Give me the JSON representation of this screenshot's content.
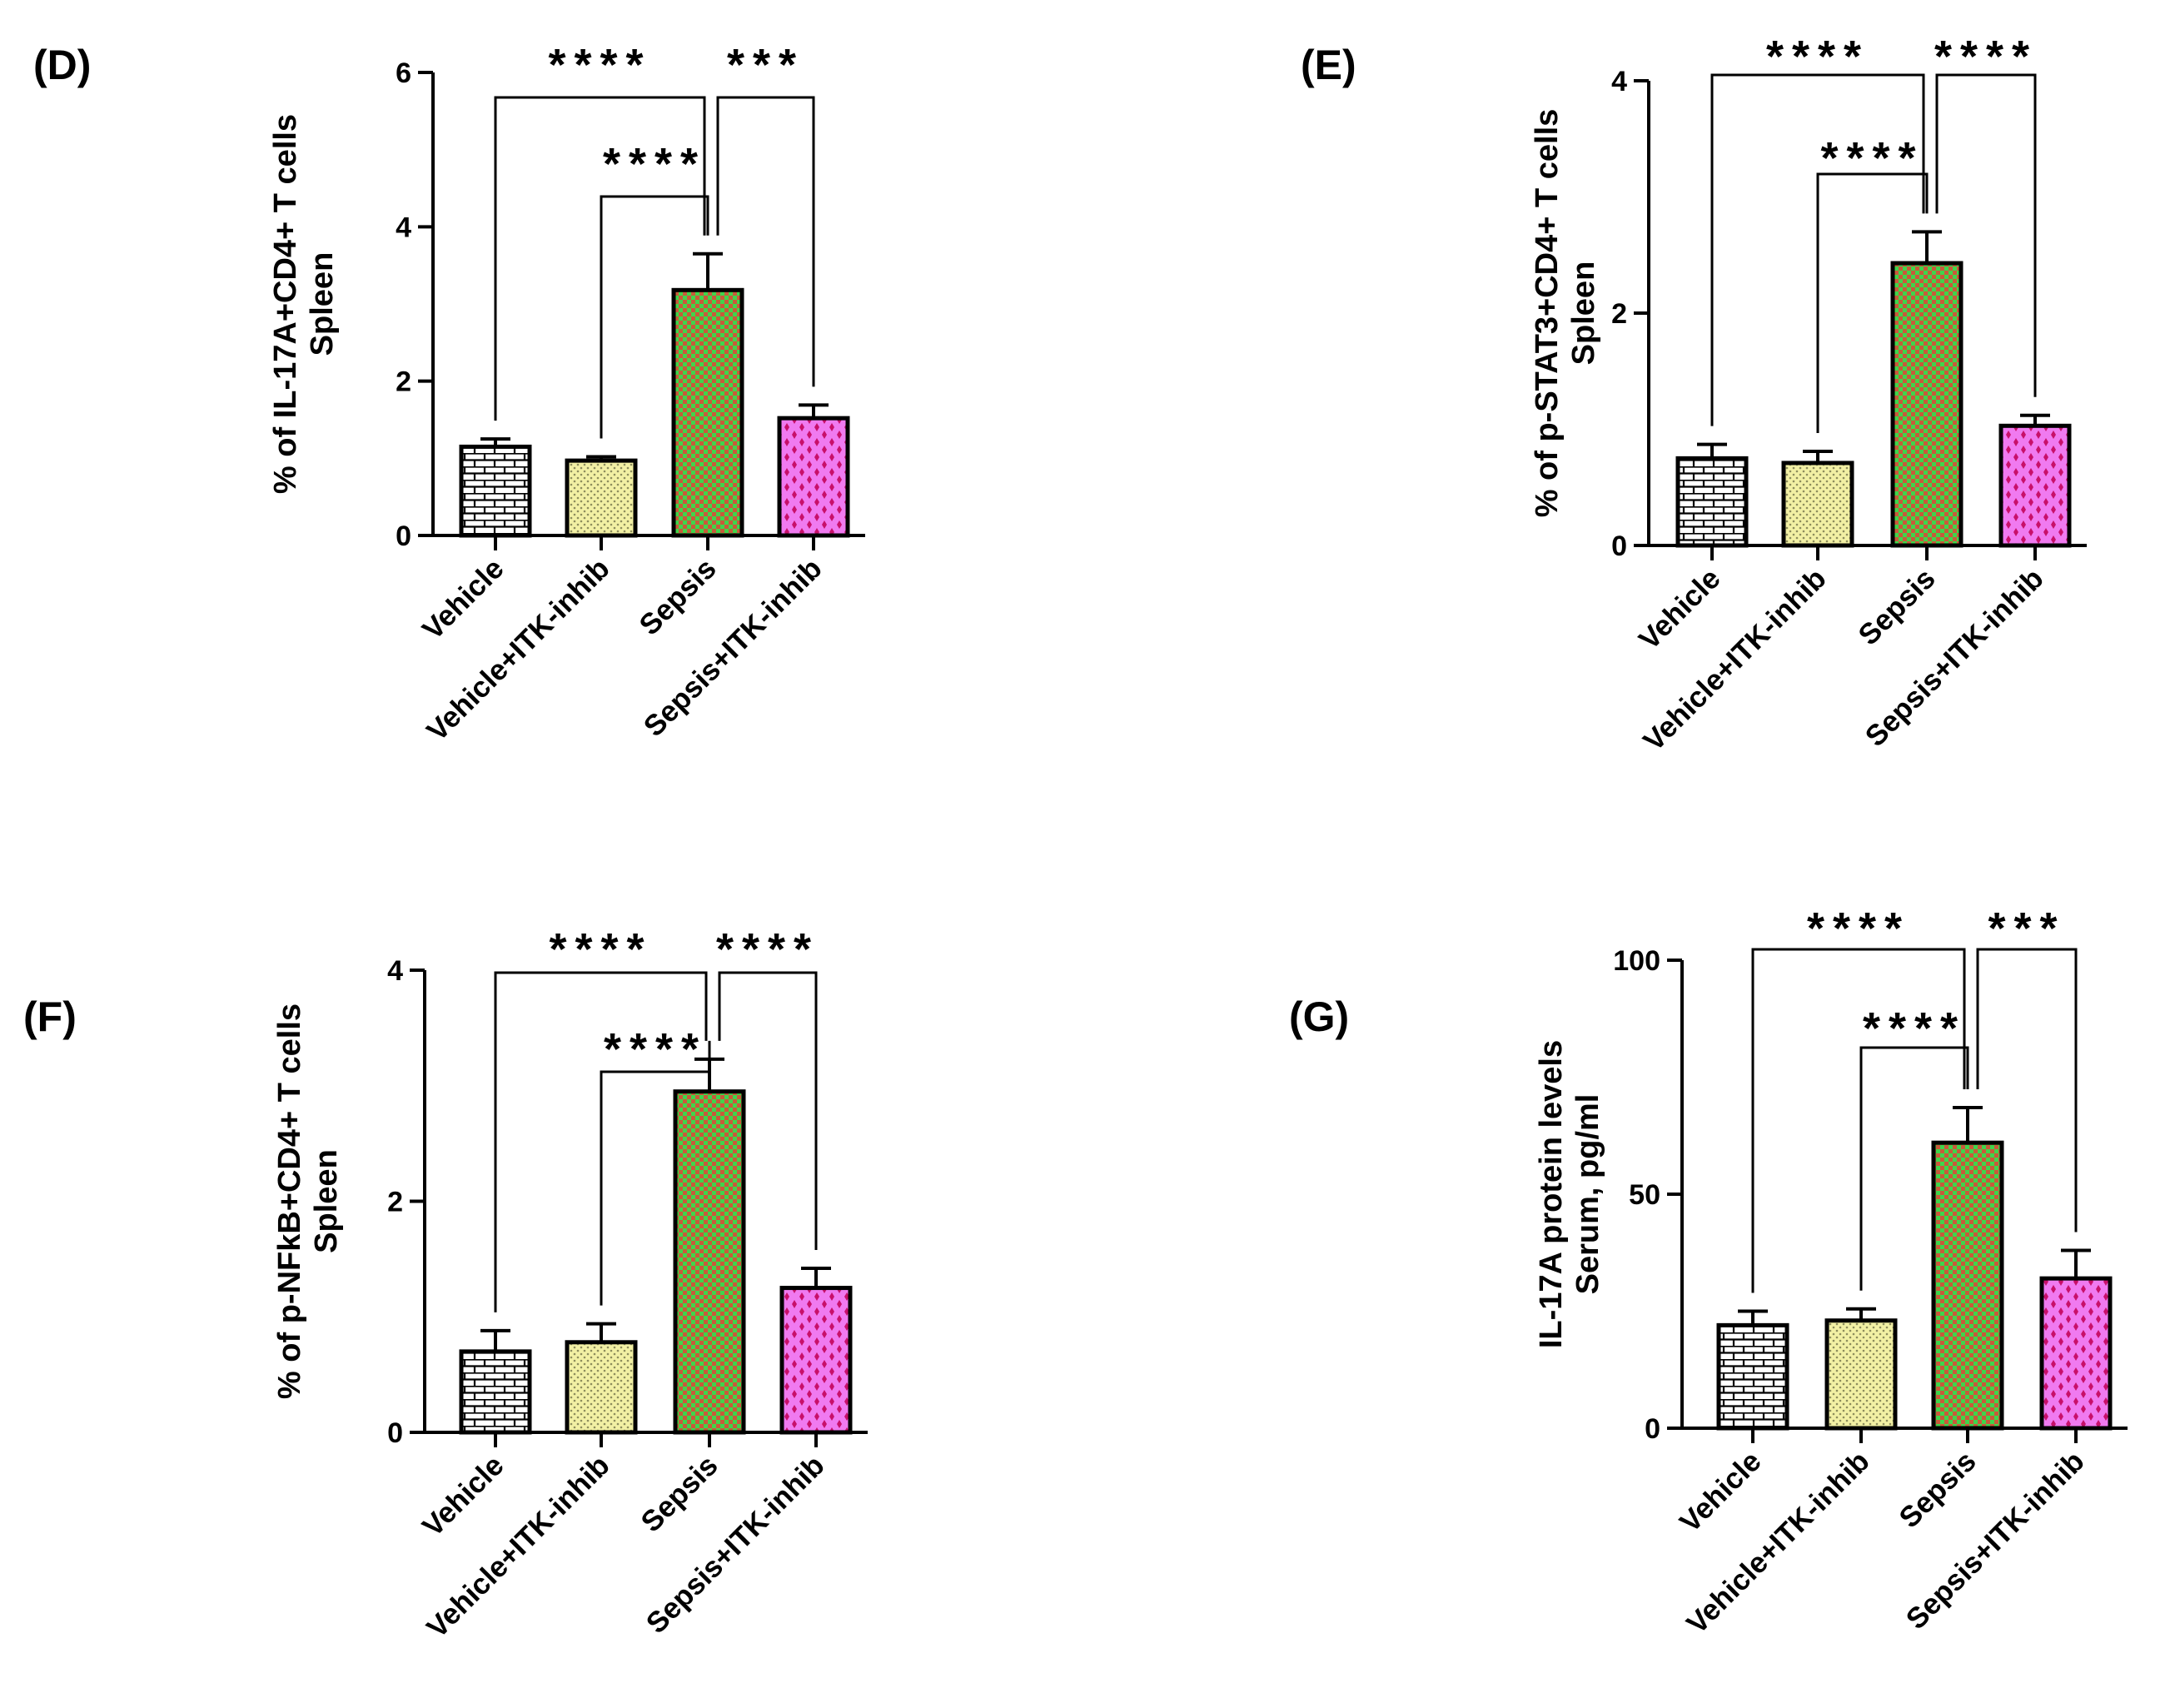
{
  "chart_data": [
    {
      "type": "bar",
      "panel": "(D)",
      "categories": [
        "Vehicle",
        "Vehicle+ITK-inhib",
        "Sepsis",
        "Sepsis+ITK-inhib"
      ],
      "values": [
        1.15,
        0.97,
        3.18,
        1.52
      ],
      "errors": [
        0.1,
        0.05,
        0.47,
        0.17
      ],
      "ylabel": [
        "% of IL-17A+CD4+ T cells",
        "Spleen"
      ],
      "ylim": [
        0,
        6
      ],
      "yticks": [
        "0",
        "2",
        "4",
        "6"
      ],
      "grid": false,
      "significance": [
        {
          "from": "Vehicle",
          "to": "Sepsis",
          "stars": "****"
        },
        {
          "from": "Vehicle+ITK-inhib",
          "to": "Sepsis",
          "stars": "****"
        },
        {
          "from": "Sepsis",
          "to": "Sepsis+ITK-inhib",
          "stars": "***"
        }
      ]
    },
    {
      "type": "bar",
      "panel": "(E)",
      "categories": [
        "Vehicle",
        "Vehicle+ITK-inhib",
        "Sepsis",
        "Sepsis+ITK-inhib"
      ],
      "values": [
        0.75,
        0.71,
        2.43,
        1.03
      ],
      "errors": [
        0.12,
        0.1,
        0.27,
        0.09
      ],
      "ylabel": [
        "% of p-STAT3+CD4+ T cells",
        "Spleen"
      ],
      "ylim": [
        0,
        4
      ],
      "yticks": [
        "0",
        "2",
        "4"
      ],
      "grid": false,
      "significance": [
        {
          "from": "Vehicle",
          "to": "Sepsis",
          "stars": "****"
        },
        {
          "from": "Vehicle+ITK-inhib",
          "to": "Sepsis",
          "stars": "****"
        },
        {
          "from": "Sepsis",
          "to": "Sepsis+ITK-inhib",
          "stars": "****"
        }
      ]
    },
    {
      "type": "bar",
      "panel": "(F)",
      "categories": [
        "Vehicle",
        "Vehicle+ITK-inhib",
        "Sepsis",
        "Sepsis+ITK-inhib"
      ],
      "values": [
        0.7,
        0.78,
        2.95,
        1.25
      ],
      "errors": [
        0.18,
        0.16,
        0.28,
        0.17
      ],
      "ylabel": [
        "% of p-NFkB+CD4+ T cells",
        "Spleen"
      ],
      "ylim": [
        0,
        4
      ],
      "yticks": [
        "0",
        "2",
        "4"
      ],
      "grid": false,
      "significance": [
        {
          "from": "Vehicle",
          "to": "Sepsis",
          "stars": "****"
        },
        {
          "from": "Vehicle+ITK-inhib",
          "to": "Sepsis",
          "stars": "****"
        },
        {
          "from": "Sepsis",
          "to": "Sepsis+ITK-inhib",
          "stars": "****"
        }
      ]
    },
    {
      "type": "bar",
      "panel": "(G)",
      "categories": [
        "Vehicle",
        "Vehicle+ITK-inhib",
        "Sepsis",
        "Sepsis+ITK-inhib"
      ],
      "values": [
        22,
        23,
        61,
        32
      ],
      "errors": [
        3,
        2.5,
        7.5,
        6
      ],
      "ylabel": [
        "IL-17A protein levels",
        "Serum, pg/ml"
      ],
      "ylim": [
        0,
        100
      ],
      "yticks": [
        "0",
        "50",
        "100"
      ],
      "grid": false,
      "significance": [
        {
          "from": "Vehicle",
          "to": "Sepsis",
          "stars": "****"
        },
        {
          "from": "Vehicle+ITK-inhib",
          "to": "Sepsis",
          "stars": "****"
        },
        {
          "from": "Sepsis",
          "to": "Sepsis+ITK-inhib",
          "stars": "***"
        }
      ]
    }
  ],
  "colors": {
    "vehicle_fill": "#ffffff",
    "vehicle_pattern": "#000000",
    "vehicle_itk_fill": "#f2f0a4",
    "vehicle_itk_pattern": "#9a9a66",
    "sepsis_fill": "#3fd54a",
    "sepsis_pattern": "#d53a3a",
    "sepsis_itk_fill": "#f070f0",
    "sepsis_itk_pattern": "#d01070"
  }
}
